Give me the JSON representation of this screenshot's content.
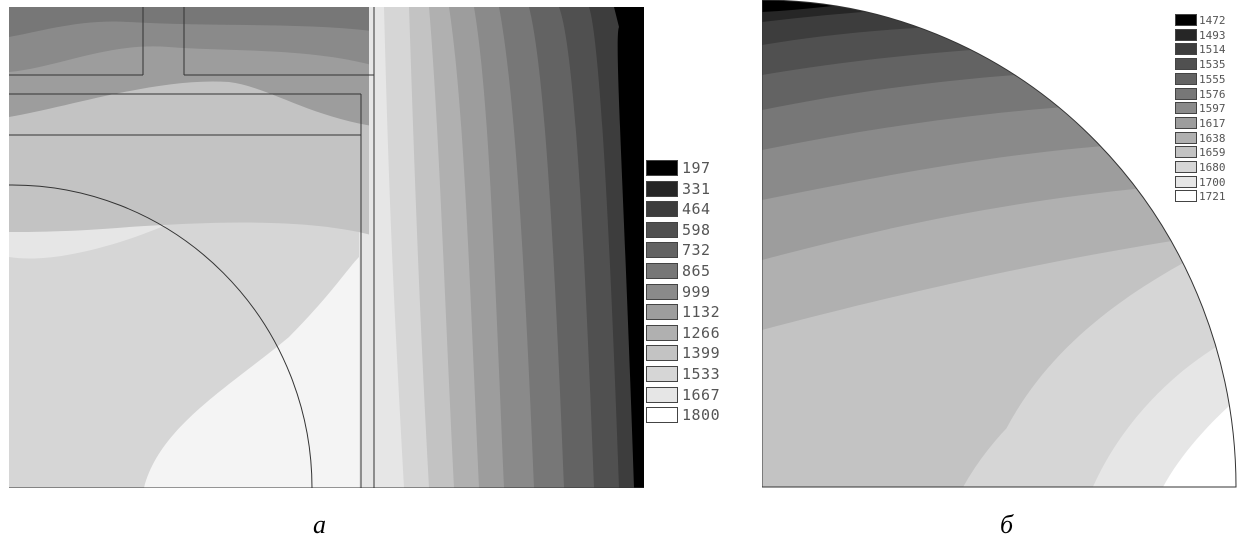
{
  "panel_a": {
    "label": "а",
    "legend": [
      "197",
      "331",
      "464",
      "598",
      "732",
      "865",
      "999",
      "1132",
      "1266",
      "1399",
      "1533",
      "1667",
      "1800"
    ],
    "colors": [
      "#000000",
      "#262626",
      "#3d3d3d",
      "#505050",
      "#636363",
      "#777777",
      "#8a8a8a",
      "#9d9d9d",
      "#b0b0b0",
      "#c3c3c3",
      "#d6d6d6",
      "#e6e6e6",
      "#ffffff"
    ]
  },
  "panel_b": {
    "label": "б",
    "legend": [
      "1472",
      "1493",
      "1514",
      "1535",
      "1555",
      "1576",
      "1597",
      "1617",
      "1638",
      "1659",
      "1680",
      "1700",
      "1721"
    ],
    "colors": [
      "#000000",
      "#262626",
      "#3d3d3d",
      "#505050",
      "#636363",
      "#777777",
      "#8a8a8a",
      "#9d9d9d",
      "#b0b0b0",
      "#c3c3c3",
      "#d6d6d6",
      "#e6e6e6",
      "#ffffff"
    ]
  }
}
